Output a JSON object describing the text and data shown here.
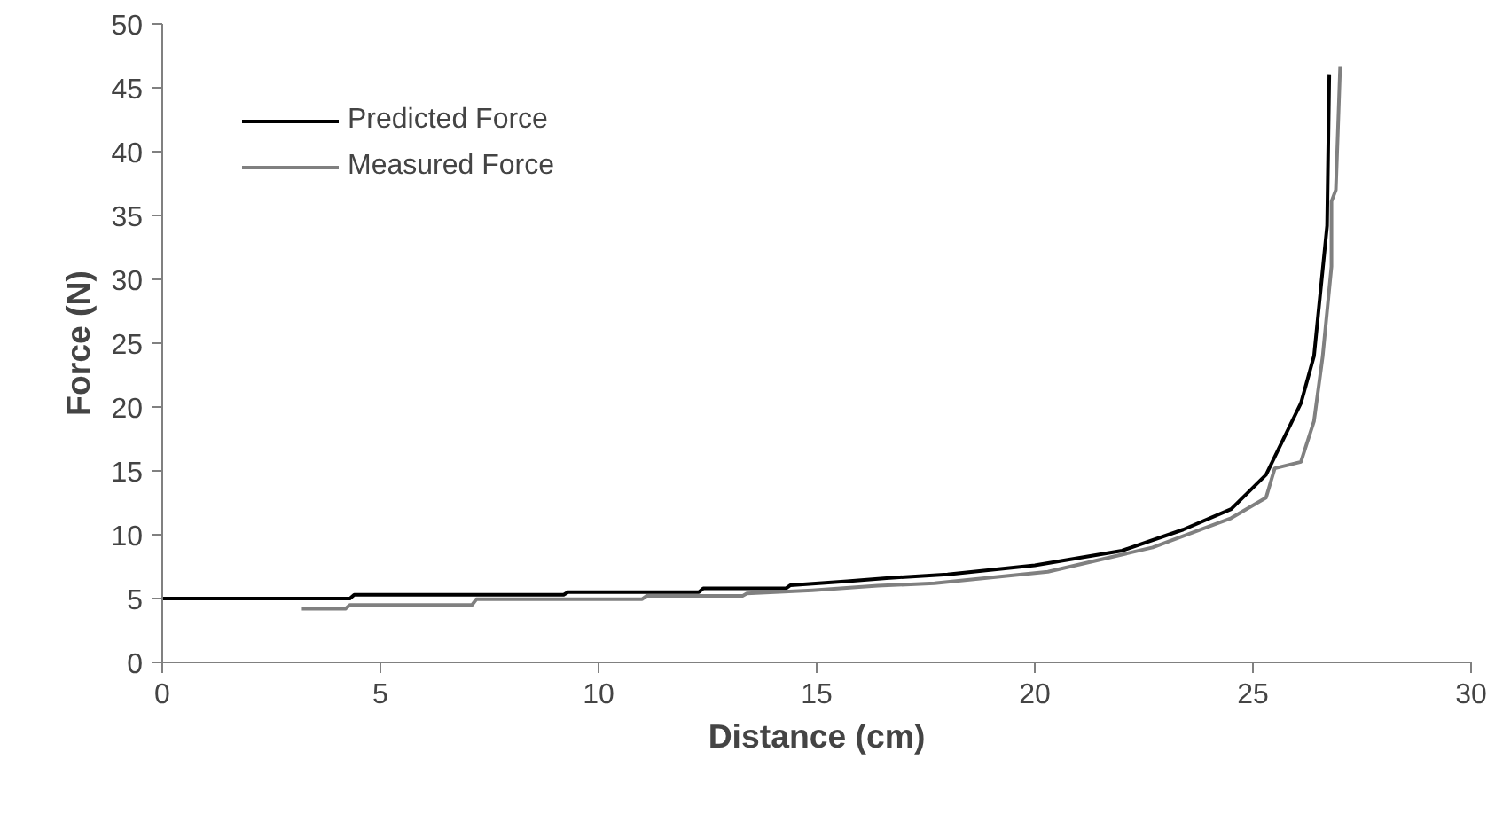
{
  "chart_data": {
    "type": "line",
    "xlabel": "Distance (cm)",
    "ylabel": "Force (N)",
    "xlim": [
      0,
      30
    ],
    "xticks": [
      0,
      5,
      10,
      15,
      20,
      25,
      30
    ],
    "ylim": [
      0,
      50
    ],
    "yticks": [
      0,
      5,
      10,
      15,
      20,
      25,
      30,
      35,
      40,
      45,
      50
    ],
    "grid": false,
    "legend": "top left",
    "marker": "none",
    "line_style": "solid",
    "series": [
      {
        "name": "Predicted Force",
        "color": "#000000",
        "x": [
          0,
          4.3,
          4.4,
          9.2,
          9.3,
          12.3,
          12.4,
          14.3,
          14.4,
          15.7,
          16.6,
          18,
          20,
          22,
          23.4,
          24.5,
          25.3,
          26.1,
          26.4,
          26.7,
          26.75
        ],
        "values": [
          5,
          5,
          5.3,
          5.3,
          5.5,
          5.5,
          5.8,
          5.8,
          6.05,
          6.35,
          6.6,
          6.9,
          7.6,
          8.75,
          10.4,
          12,
          14.7,
          20.3,
          24,
          34.2,
          46
        ]
      },
      {
        "name": "Measured Force",
        "color": "#808080",
        "x": [
          3.2,
          4.2,
          4.3,
          7.1,
          7.2,
          11,
          11.1,
          13.3,
          13.4,
          14.9,
          16.4,
          17.7,
          20.3,
          22.7,
          24.5,
          25.3,
          25.5,
          26.1,
          26.4,
          26.6,
          26.8,
          26.8,
          26.9,
          27
        ],
        "values": [
          4.2,
          4.2,
          4.5,
          4.5,
          4.95,
          4.95,
          5.2,
          5.2,
          5.4,
          5.65,
          6,
          6.2,
          7.1,
          9,
          11.3,
          12.9,
          15.2,
          15.7,
          18.9,
          24,
          31,
          36.1,
          37,
          46.7
        ]
      }
    ]
  }
}
